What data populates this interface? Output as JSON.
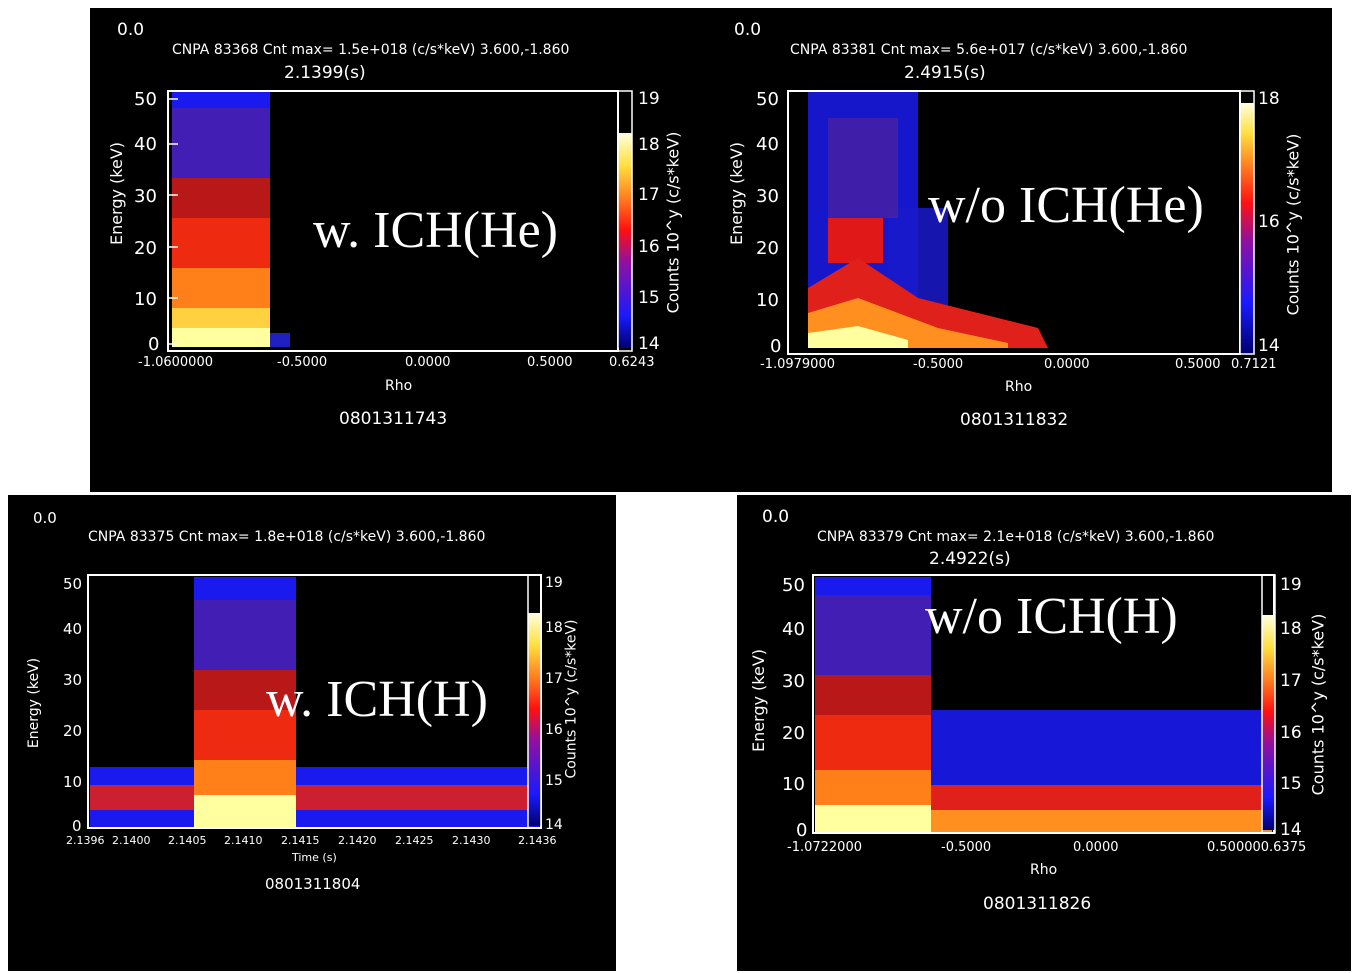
{
  "chart_data": [
    {
      "type": "heatmap",
      "corner_value": "0.0",
      "header": "CNPA 83368 Cnt  max=  1.5e+018 (c/s*keV) 3.600,-1.860",
      "time_label": "2.1399(s)",
      "overlay": "w. ICH(He)",
      "shot": "0801311743",
      "xlabel": "Rho",
      "ylabel": "Energy (keV)",
      "cbar_label": "Counts  10^y  (c/s*keV)",
      "x_ticks": [
        "-1.0600000",
        "-0.5000",
        "0.0000",
        "0.5000",
        "0.6243"
      ],
      "y_ticks": [
        "0",
        "10",
        "20",
        "30",
        "40",
        "50"
      ],
      "cbar_ticks": [
        "14",
        "15",
        "16",
        "17",
        "18",
        "19"
      ],
      "xlim": [
        -1.06,
        0.6243
      ],
      "ylim": [
        0,
        50
      ],
      "zlim": [
        14,
        19
      ]
    },
    {
      "type": "heatmap",
      "corner_value": "0.0",
      "header": "CNPA 83381 Cnt  max=  5.6e+017 (c/s*keV) 3.600,-1.860",
      "time_label": "2.4915(s)",
      "overlay": "w/o ICH(He)",
      "shot": "0801311832",
      "xlabel": "Rho",
      "ylabel": "Energy (keV)",
      "cbar_label": "Counts  10^y  (c/s*keV)",
      "x_ticks": [
        "-1.0979000",
        "-0.5000",
        "0.0000",
        "0.5000",
        "0.7121"
      ],
      "y_ticks": [
        "0",
        "10",
        "20",
        "30",
        "40",
        "50"
      ],
      "cbar_ticks": [
        "14",
        "16",
        "18"
      ],
      "xlim": [
        -1.0979,
        0.7121
      ],
      "ylim": [
        0,
        50
      ],
      "zlim": [
        14,
        18
      ]
    },
    {
      "type": "heatmap",
      "corner_value": "0.0",
      "header": "CNPA 83375 Cnt  max=  1.8e+018 (c/s*keV) 3.600,-1.860",
      "time_label": "",
      "overlay": "w. ICH(H)",
      "shot": "0801311804",
      "xlabel": "Time (s)",
      "ylabel": "Energy (keV)",
      "cbar_label": "Counts  10^y  (c/s*keV)",
      "x_ticks": [
        "2.1396",
        "2.1400",
        "2.1405",
        "2.1410",
        "2.1415",
        "2.1420",
        "2.1425",
        "2.1430",
        "2.1436"
      ],
      "y_ticks": [
        "0",
        "10",
        "20",
        "30",
        "40",
        "50"
      ],
      "cbar_ticks": [
        "14",
        "15",
        "16",
        "17",
        "18",
        "19"
      ],
      "xlim": [
        2.1396,
        2.1436
      ],
      "ylim": [
        0,
        50
      ],
      "zlim": [
        14,
        19
      ]
    },
    {
      "type": "heatmap",
      "corner_value": "0.0",
      "header": "CNPA 83379 Cnt  max=  2.1e+018 (c/s*keV) 3.600,-1.860",
      "time_label": "2.4922(s)",
      "overlay": "w/o ICH(H)",
      "shot": "0801311826",
      "xlabel": "Rho",
      "ylabel": "Energy (keV)",
      "cbar_label": "Counts  10^y  (c/s*keV)",
      "x_ticks": [
        "-1.0722000",
        "-0.5000",
        "0.0000",
        "0.500000.6375"
      ],
      "y_ticks": [
        "0",
        "10",
        "20",
        "30",
        "40",
        "50"
      ],
      "cbar_ticks": [
        "14",
        "15",
        "16",
        "17",
        "18",
        "19"
      ],
      "xlim": [
        -1.0722,
        0.6375
      ],
      "ylim": [
        0,
        50
      ],
      "zlim": [
        14,
        19
      ]
    }
  ]
}
